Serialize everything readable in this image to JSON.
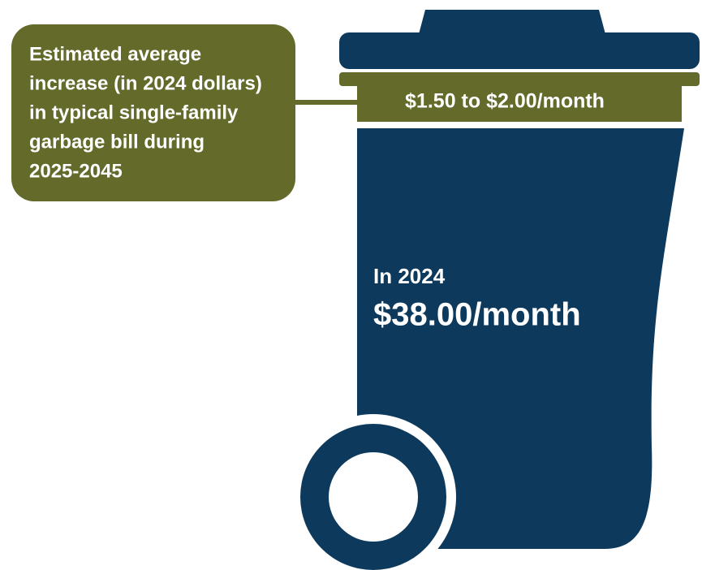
{
  "callout": {
    "lines": [
      "Estimated average",
      "increase (in 2024 dollars)",
      "in typical single-family",
      "garbage bill during",
      "2025-2045"
    ]
  },
  "band_label": "$1.50 to $2.00/month",
  "current": {
    "label": "In 2024",
    "value": "$38.00/month"
  }
}
